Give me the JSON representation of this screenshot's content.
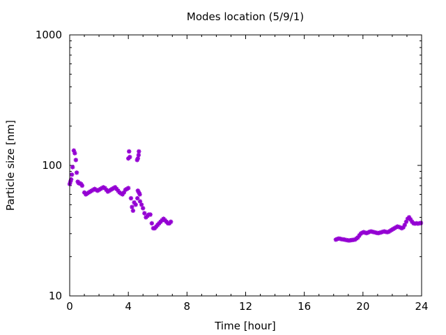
{
  "chart_data": {
    "type": "scatter",
    "title": "Modes location (5/9/1)",
    "xlabel": "Time [hour]",
    "ylabel": "Particle size [nm]",
    "xlim": [
      0,
      24
    ],
    "ylim": [
      10,
      1000
    ],
    "yscale": "log",
    "xticks": [
      0,
      4,
      8,
      12,
      16,
      20,
      24
    ],
    "xtick_labels": [
      "0",
      "4",
      "8",
      "12",
      "16",
      "20",
      "24"
    ],
    "yticks": [
      10,
      100,
      1000
    ],
    "ytick_labels": [
      "10",
      "100",
      "1000"
    ],
    "grid": false,
    "legend": "none",
    "marker": "star",
    "color": "#9400d3",
    "series": [
      {
        "points": [
          [
            0.0,
            72
          ],
          [
            0.05,
            75
          ],
          [
            0.1,
            78
          ],
          [
            0.15,
            85
          ],
          [
            0.2,
            97
          ],
          [
            0.28,
            130
          ],
          [
            0.35,
            124
          ],
          [
            0.42,
            110
          ],
          [
            0.48,
            88
          ],
          [
            0.55,
            75
          ],
          [
            0.62,
            73
          ],
          [
            0.7,
            73
          ],
          [
            0.78,
            72
          ],
          [
            0.85,
            70
          ],
          [
            1.0,
            62
          ],
          [
            1.1,
            60
          ],
          [
            1.2,
            61
          ],
          [
            1.3,
            62
          ],
          [
            1.4,
            63
          ],
          [
            1.5,
            64
          ],
          [
            1.6,
            65
          ],
          [
            1.7,
            66
          ],
          [
            1.8,
            65
          ],
          [
            1.9,
            64
          ],
          [
            2.0,
            65
          ],
          [
            2.1,
            66
          ],
          [
            2.2,
            67
          ],
          [
            2.3,
            68
          ],
          [
            2.4,
            67
          ],
          [
            2.5,
            65
          ],
          [
            2.6,
            63
          ],
          [
            2.7,
            64
          ],
          [
            2.8,
            65
          ],
          [
            2.9,
            66
          ],
          [
            3.0,
            67
          ],
          [
            3.1,
            68
          ],
          [
            3.2,
            66
          ],
          [
            3.3,
            64
          ],
          [
            3.4,
            62
          ],
          [
            3.5,
            61
          ],
          [
            3.6,
            60
          ],
          [
            3.7,
            62
          ],
          [
            3.8,
            65
          ],
          [
            3.9,
            66
          ],
          [
            4.0,
            67
          ],
          [
            4.0,
            113
          ],
          [
            4.05,
            128
          ],
          [
            4.1,
            116
          ],
          [
            4.18,
            56
          ],
          [
            4.25,
            48
          ],
          [
            4.32,
            45
          ],
          [
            4.4,
            52
          ],
          [
            4.5,
            50
          ],
          [
            4.6,
            110
          ],
          [
            4.65,
            113
          ],
          [
            4.7,
            120
          ],
          [
            4.72,
            128
          ],
          [
            4.65,
            64
          ],
          [
            4.72,
            62
          ],
          [
            4.78,
            60
          ],
          [
            4.62,
            56
          ],
          [
            4.8,
            53
          ],
          [
            4.9,
            50
          ],
          [
            5.0,
            47
          ],
          [
            5.1,
            43
          ],
          [
            5.2,
            40
          ],
          [
            5.3,
            41
          ],
          [
            5.4,
            42
          ],
          [
            5.5,
            42
          ],
          [
            5.6,
            36
          ],
          [
            5.7,
            33
          ],
          [
            5.8,
            33
          ],
          [
            5.9,
            34
          ],
          [
            6.0,
            35
          ],
          [
            6.1,
            36
          ],
          [
            6.2,
            37
          ],
          [
            6.3,
            38
          ],
          [
            6.4,
            39
          ],
          [
            6.5,
            38
          ],
          [
            6.6,
            37
          ],
          [
            6.7,
            36
          ],
          [
            6.8,
            36
          ],
          [
            6.9,
            37
          ],
          [
            18.15,
            27
          ],
          [
            18.25,
            27.3
          ],
          [
            18.35,
            27.5
          ],
          [
            18.45,
            27.4
          ],
          [
            18.55,
            27.2
          ],
          [
            18.65,
            27.1
          ],
          [
            18.75,
            27.0
          ],
          [
            18.85,
            26.8
          ],
          [
            18.95,
            26.7
          ],
          [
            19.05,
            26.6
          ],
          [
            19.15,
            26.7
          ],
          [
            19.25,
            26.8
          ],
          [
            19.35,
            26.9
          ],
          [
            19.45,
            27.0
          ],
          [
            19.55,
            27.5
          ],
          [
            19.65,
            28.0
          ],
          [
            19.75,
            29.0
          ],
          [
            19.85,
            30.0
          ],
          [
            19.95,
            30.5
          ],
          [
            20.05,
            30.8
          ],
          [
            20.15,
            30.5
          ],
          [
            20.25,
            30.3
          ],
          [
            20.35,
            30.6
          ],
          [
            20.45,
            31.0
          ],
          [
            20.55,
            31.2
          ],
          [
            20.65,
            31.0
          ],
          [
            20.75,
            30.8
          ],
          [
            20.85,
            30.6
          ],
          [
            20.95,
            30.4
          ],
          [
            21.05,
            30.3
          ],
          [
            21.15,
            30.5
          ],
          [
            21.25,
            30.7
          ],
          [
            21.35,
            31.0
          ],
          [
            21.45,
            31.2
          ],
          [
            21.55,
            31.0
          ],
          [
            21.65,
            30.8
          ],
          [
            21.75,
            31.0
          ],
          [
            21.85,
            31.5
          ],
          [
            21.95,
            32.0
          ],
          [
            22.05,
            32.5
          ],
          [
            22.15,
            33.0
          ],
          [
            22.25,
            33.5
          ],
          [
            22.35,
            34.0
          ],
          [
            22.45,
            33.8
          ],
          [
            22.55,
            33.4
          ],
          [
            22.65,
            33.0
          ],
          [
            22.75,
            33.5
          ],
          [
            22.85,
            35.0
          ],
          [
            22.95,
            37.0
          ],
          [
            23.05,
            39.0
          ],
          [
            23.15,
            40.0
          ],
          [
            23.25,
            38.5
          ],
          [
            23.35,
            37.0
          ],
          [
            23.45,
            36.0
          ],
          [
            23.55,
            35.8
          ],
          [
            23.65,
            36.0
          ],
          [
            23.75,
            35.8
          ],
          [
            23.85,
            36.0
          ],
          [
            23.95,
            36.2
          ]
        ]
      }
    ]
  }
}
